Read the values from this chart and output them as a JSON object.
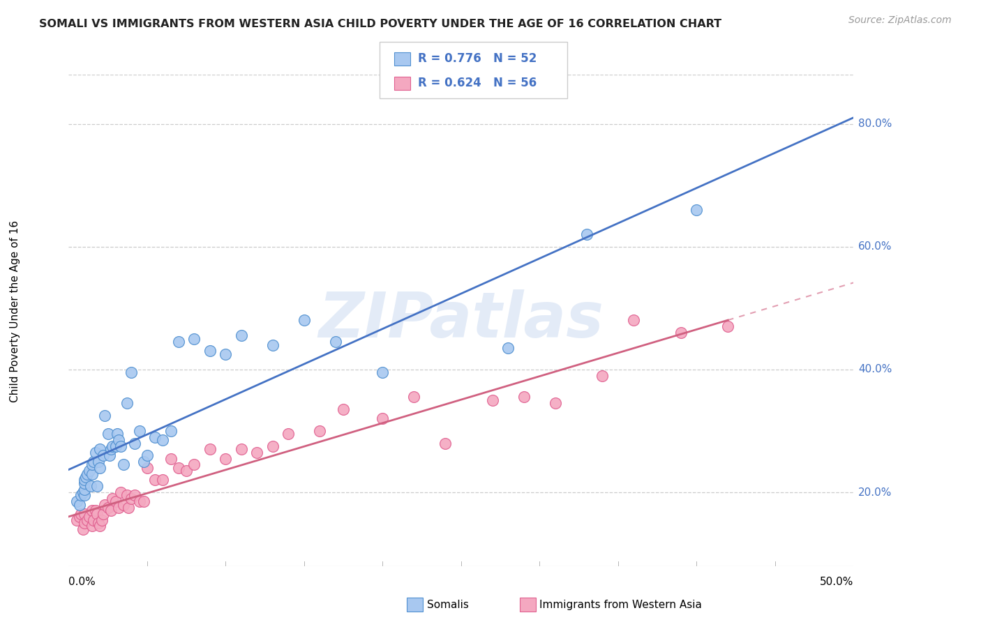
{
  "title": "SOMALI VS IMMIGRANTS FROM WESTERN ASIA CHILD POVERTY UNDER THE AGE OF 16 CORRELATION CHART",
  "source": "Source: ZipAtlas.com",
  "ylabel": "Child Poverty Under the Age of 16",
  "ytick_labels": [
    "20.0%",
    "40.0%",
    "60.0%",
    "80.0%"
  ],
  "xtick_left": "0.0%",
  "xtick_right": "50.0%",
  "xlim": [
    0.0,
    0.5
  ],
  "ylim": [
    0.08,
    0.88
  ],
  "yticks": [
    0.2,
    0.4,
    0.6,
    0.8
  ],
  "somali_color": "#a8c8f0",
  "somali_edge": "#5090d0",
  "western_asia_color": "#f4a8c0",
  "western_asia_edge": "#e06090",
  "somali_line_color": "#4472c4",
  "western_asia_line_color": "#d06080",
  "legend_text_color": "#4472c4",
  "watermark_color": "#c8d8f0",
  "grid_color": "#cccccc",
  "legend_R1": "R = 0.776",
  "legend_N1": "N = 52",
  "legend_R2": "R = 0.624",
  "legend_N2": "N = 56",
  "somali_x": [
    0.005,
    0.007,
    0.008,
    0.009,
    0.01,
    0.01,
    0.01,
    0.01,
    0.011,
    0.012,
    0.013,
    0.014,
    0.015,
    0.015,
    0.016,
    0.017,
    0.018,
    0.019,
    0.02,
    0.02,
    0.022,
    0.023,
    0.025,
    0.026,
    0.027,
    0.028,
    0.03,
    0.031,
    0.032,
    0.033,
    0.035,
    0.037,
    0.04,
    0.042,
    0.045,
    0.048,
    0.05,
    0.055,
    0.06,
    0.065,
    0.07,
    0.08,
    0.09,
    0.1,
    0.11,
    0.13,
    0.15,
    0.17,
    0.2,
    0.28,
    0.33,
    0.4
  ],
  "somali_y": [
    0.185,
    0.18,
    0.195,
    0.2,
    0.195,
    0.205,
    0.215,
    0.22,
    0.225,
    0.23,
    0.235,
    0.21,
    0.23,
    0.245,
    0.25,
    0.265,
    0.21,
    0.25,
    0.24,
    0.27,
    0.26,
    0.325,
    0.295,
    0.26,
    0.27,
    0.275,
    0.275,
    0.295,
    0.285,
    0.275,
    0.245,
    0.345,
    0.395,
    0.28,
    0.3,
    0.25,
    0.26,
    0.29,
    0.285,
    0.3,
    0.445,
    0.45,
    0.43,
    0.425,
    0.455,
    0.44,
    0.48,
    0.445,
    0.395,
    0.435,
    0.62,
    0.66
  ],
  "western_asia_x": [
    0.005,
    0.007,
    0.008,
    0.009,
    0.01,
    0.01,
    0.012,
    0.013,
    0.015,
    0.015,
    0.016,
    0.017,
    0.018,
    0.019,
    0.02,
    0.021,
    0.022,
    0.023,
    0.025,
    0.027,
    0.028,
    0.03,
    0.032,
    0.033,
    0.035,
    0.037,
    0.038,
    0.04,
    0.042,
    0.045,
    0.048,
    0.05,
    0.055,
    0.06,
    0.065,
    0.07,
    0.075,
    0.08,
    0.09,
    0.1,
    0.11,
    0.12,
    0.13,
    0.14,
    0.16,
    0.175,
    0.2,
    0.22,
    0.24,
    0.27,
    0.29,
    0.31,
    0.34,
    0.36,
    0.39,
    0.42
  ],
  "western_asia_y": [
    0.155,
    0.16,
    0.165,
    0.14,
    0.15,
    0.165,
    0.155,
    0.16,
    0.145,
    0.17,
    0.155,
    0.17,
    0.165,
    0.15,
    0.145,
    0.155,
    0.165,
    0.18,
    0.175,
    0.17,
    0.19,
    0.185,
    0.175,
    0.2,
    0.18,
    0.195,
    0.175,
    0.19,
    0.195,
    0.185,
    0.185,
    0.24,
    0.22,
    0.22,
    0.255,
    0.24,
    0.235,
    0.245,
    0.27,
    0.255,
    0.27,
    0.265,
    0.275,
    0.295,
    0.3,
    0.335,
    0.32,
    0.355,
    0.28,
    0.35,
    0.355,
    0.345,
    0.39,
    0.48,
    0.46,
    0.47
  ]
}
